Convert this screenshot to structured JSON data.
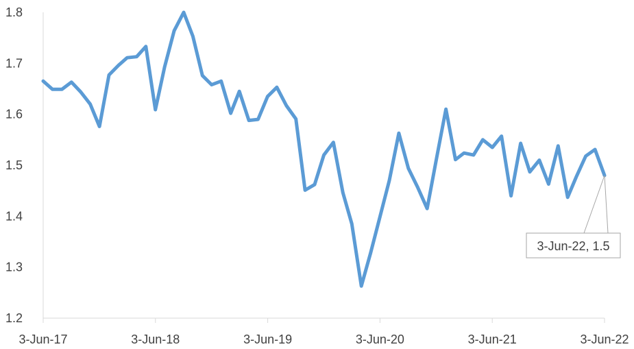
{
  "chart_data": {
    "type": "line",
    "title": "",
    "xlabel": "",
    "ylabel": "",
    "ylim": [
      1.2,
      1.8
    ],
    "yticks": [
      "1.2",
      "1.3",
      "1.4",
      "1.5",
      "1.6",
      "1.7",
      "1.8"
    ],
    "xlim": [
      "2017-06-03",
      "2022-06-03"
    ],
    "xticks": [
      "3-Jun-17",
      "3-Jun-18",
      "3-Jun-19",
      "3-Jun-20",
      "3-Jun-21",
      "3-Jun-22"
    ],
    "grid": false,
    "legend": "none",
    "line_color": "#5B9BD5",
    "series": [
      {
        "x": [
          "2017-06-03",
          "2017-07-03",
          "2017-08-03",
          "2017-09-03",
          "2017-10-03",
          "2017-11-03",
          "2017-12-03",
          "2018-01-03",
          "2018-02-03",
          "2018-03-03",
          "2018-04-03",
          "2018-05-03",
          "2018-06-03",
          "2018-07-03",
          "2018-08-03",
          "2018-09-03",
          "2018-10-03",
          "2018-11-03",
          "2018-12-03",
          "2019-01-03",
          "2019-02-03",
          "2019-03-03",
          "2019-04-03",
          "2019-05-03",
          "2019-06-03",
          "2019-07-03",
          "2019-08-03",
          "2019-09-03",
          "2019-10-03",
          "2019-11-03",
          "2019-12-03",
          "2020-01-03",
          "2020-02-03",
          "2020-03-03",
          "2020-04-03",
          "2020-05-03",
          "2020-06-03",
          "2020-07-03",
          "2020-08-03",
          "2020-09-03",
          "2020-10-03",
          "2020-11-03",
          "2020-12-03",
          "2021-01-03",
          "2021-02-03",
          "2021-03-03",
          "2021-04-03",
          "2021-05-03",
          "2021-06-03",
          "2021-07-03",
          "2021-08-03",
          "2021-09-03",
          "2021-10-03",
          "2021-11-03",
          "2021-12-03",
          "2022-01-03",
          "2022-02-03",
          "2022-03-03",
          "2022-04-03",
          "2022-05-03",
          "2022-06-03"
        ],
        "values": [
          1.665,
          1.649,
          1.649,
          1.663,
          1.644,
          1.62,
          1.576,
          1.677,
          1.696,
          1.711,
          1.713,
          1.733,
          1.609,
          1.693,
          1.764,
          1.8,
          1.753,
          1.676,
          1.658,
          1.665,
          1.602,
          1.645,
          1.588,
          1.59,
          1.635,
          1.653,
          1.617,
          1.591,
          1.451,
          1.462,
          1.52,
          1.545,
          1.446,
          1.385,
          1.263,
          1.328,
          1.4,
          1.47,
          1.563,
          1.494,
          1.457,
          1.415,
          1.512,
          1.61,
          1.511,
          1.524,
          1.52,
          1.55,
          1.535,
          1.557,
          1.44,
          1.543,
          1.487,
          1.51,
          1.463,
          1.538,
          1.437,
          1.477,
          1.518,
          1.531,
          1.48
        ]
      }
    ],
    "annotation": {
      "label": "3-Jun-22, 1.5",
      "x": "2022-06-03",
      "y": 1.48
    }
  }
}
